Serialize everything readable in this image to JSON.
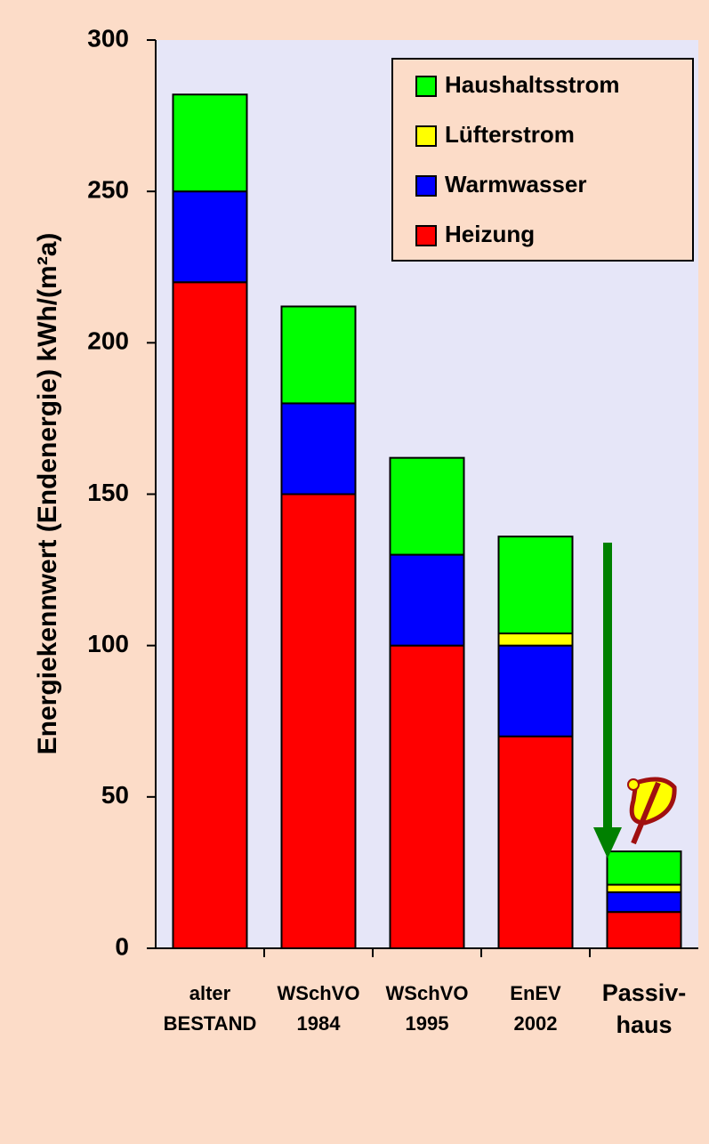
{
  "chart_data": {
    "type": "stacked_bar",
    "y_label": "Energiekennwert  (Endenergie) kWh/(m²a)",
    "categories": [
      "alter\nBESTAND",
      "WSchVO\n1984",
      "WSchVO\n1995",
      "EnEV\n2002",
      "Passiv-\nhaus"
    ],
    "series": [
      {
        "name": "Heizung",
        "color": "#ff0000",
        "values": [
          220,
          150,
          100,
          70,
          12
        ]
      },
      {
        "name": "Warmwasser",
        "color": "#0000ff",
        "values": [
          30,
          30,
          30,
          30,
          6.5
        ]
      },
      {
        "name": "Lüfterstrom",
        "color": "#ffff00",
        "values": [
          null,
          null,
          null,
          4,
          2.5
        ]
      },
      {
        "name": "Haushaltsstrom",
        "color": "#00ff00",
        "values": [
          32,
          32,
          32,
          32,
          11
        ]
      }
    ],
    "ylim": [
      0,
      300
    ],
    "yticks": [
      0,
      50,
      100,
      150,
      200,
      250,
      300
    ]
  }
}
